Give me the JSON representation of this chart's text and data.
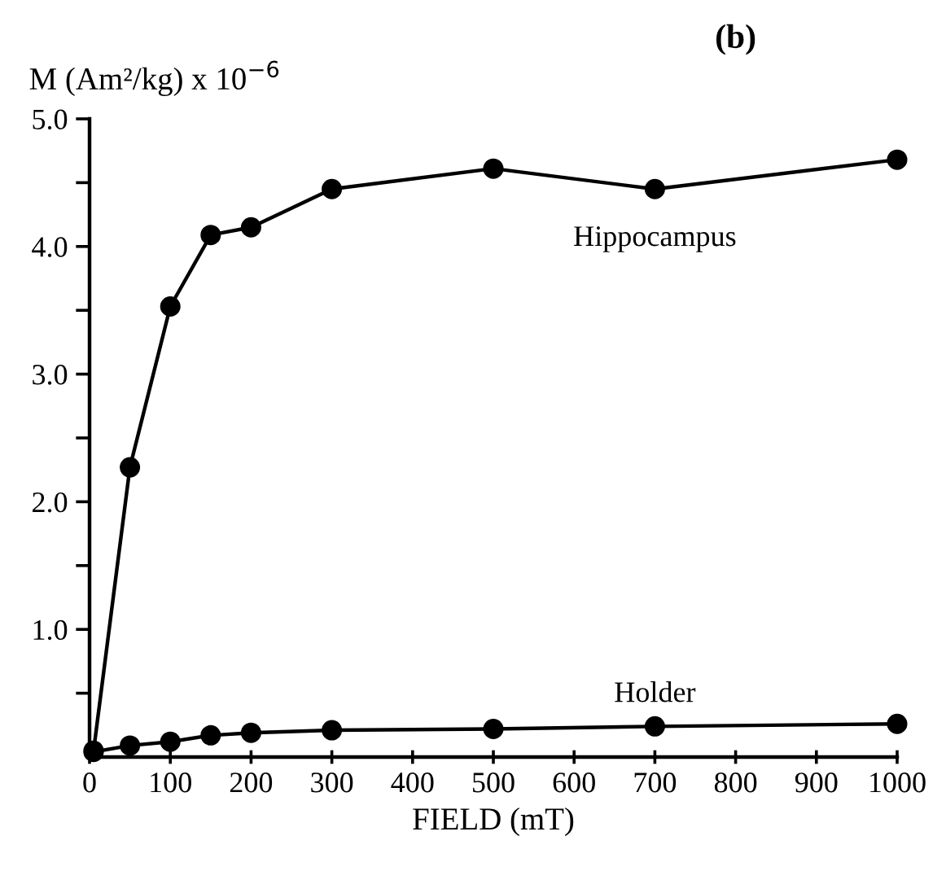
{
  "chart_data": {
    "type": "line",
    "xlabel": "FIELD (mT)",
    "ylabel": "M (Am²/kg) x 10$^{−6}$",
    "annotations": [
      "(b)"
    ],
    "series": [
      {
        "name": "Hippocampus",
        "color": "#000000",
        "x": [
          5,
          50,
          100,
          150,
          200,
          300,
          500,
          700,
          1000
        ],
        "values": [
          0.05,
          2.27,
          3.53,
          4.09,
          4.15,
          4.45,
          4.61,
          4.45,
          4.68
        ]
      },
      {
        "name": "Holder",
        "color": "#000000",
        "x": [
          5,
          50,
          100,
          150,
          200,
          300,
          500,
          700,
          1000
        ],
        "values": [
          0.04,
          0.09,
          0.12,
          0.17,
          0.19,
          0.21,
          0.22,
          0.24,
          0.26
        ]
      }
    ],
    "xlim": [
      0,
      1000
    ],
    "ylim": [
      0,
      5
    ],
    "xticks": [
      0,
      100,
      200,
      300,
      400,
      500,
      600,
      700,
      800,
      900,
      1000
    ],
    "yticks": [
      {
        "value": 0.5,
        "label": null
      },
      {
        "value": 1,
        "label": "1.0"
      },
      {
        "value": 1.5,
        "label": null
      },
      {
        "value": 2,
        "label": "2.0"
      },
      {
        "value": 2.5,
        "label": null
      },
      {
        "value": 3,
        "label": "3.0"
      },
      {
        "value": 3.5,
        "label": null
      },
      {
        "value": 4,
        "label": "4.0"
      },
      {
        "value": 4.5,
        "label": null
      },
      {
        "value": 5,
        "label": "5.0"
      }
    ],
    "grid": false,
    "legend": false,
    "marker": "circle",
    "line_style": "solid"
  }
}
